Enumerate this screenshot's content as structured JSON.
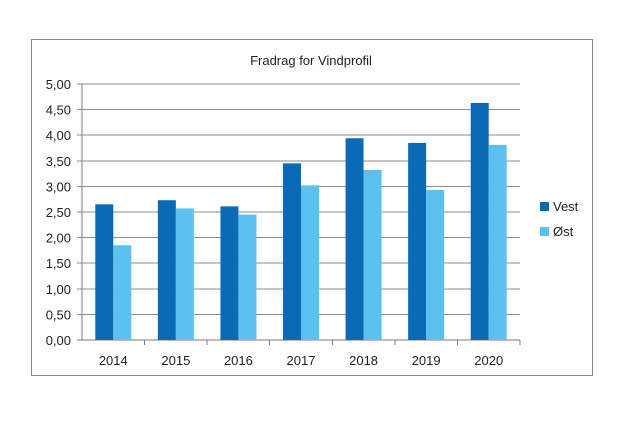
{
  "chart_data": {
    "type": "bar",
    "title": "Fradrag for Vindprofil",
    "xlabel": "",
    "ylabel": "",
    "categories": [
      "2014",
      "2015",
      "2016",
      "2017",
      "2018",
      "2019",
      "2020"
    ],
    "series": [
      {
        "name": "Vest",
        "color": "#0a6ab5",
        "values": [
          2.65,
          2.73,
          2.61,
          3.45,
          3.94,
          3.85,
          4.63
        ]
      },
      {
        "name": "Øst",
        "color": "#5bc1ef",
        "values": [
          1.85,
          2.57,
          2.45,
          3.02,
          3.32,
          2.93,
          3.81
        ]
      }
    ],
    "ylim": [
      0,
      5
    ],
    "y_ticks": [
      "0,00",
      "0,50",
      "1,00",
      "1,50",
      "2,00",
      "2,50",
      "3,00",
      "3,50",
      "4,00",
      "4,50",
      "5,00"
    ],
    "grid": true,
    "legend_position": "right"
  }
}
